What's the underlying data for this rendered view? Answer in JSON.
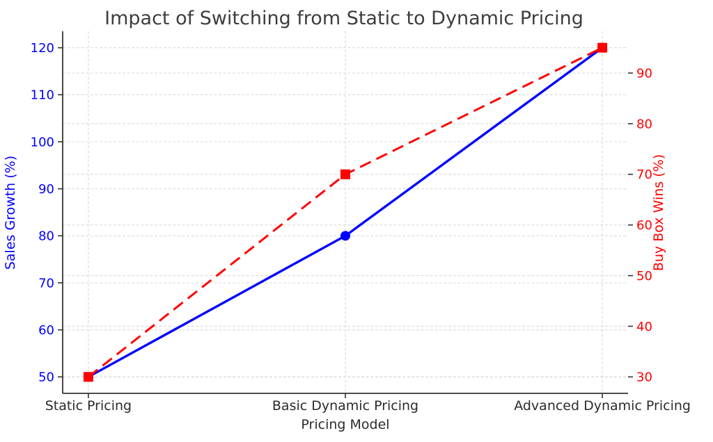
{
  "chart_data": {
    "type": "line",
    "title": "Impact of Switching from Static to Dynamic Pricing",
    "xlabel": "Pricing Model",
    "categories": [
      "Static Pricing",
      "Basic Dynamic Pricing",
      "Advanced Dynamic Pricing"
    ],
    "axes": {
      "left": {
        "label": "Sales Growth (%)",
        "color": "#0000ff",
        "ticks": [
          50,
          60,
          70,
          80,
          90,
          100,
          110,
          120
        ],
        "lim": [
          46.5,
          123.5
        ]
      },
      "right": {
        "label": "Buy Box Wins (%)",
        "color": "#ff0000",
        "ticks": [
          30,
          40,
          50,
          60,
          70,
          80,
          90
        ],
        "lim": [
          26.75,
          98.25
        ]
      }
    },
    "series": [
      {
        "name": "Sales Growth (%)",
        "axis": "left",
        "color": "#0000ff",
        "line_style": "solid",
        "marker": "circle",
        "values": [
          50,
          80,
          120
        ]
      },
      {
        "name": "Buy Box Wins (%)",
        "axis": "right",
        "color": "#ff0000",
        "line_style": "dashed",
        "marker": "square",
        "values": [
          30,
          70,
          95
        ]
      }
    ],
    "grid": {
      "on": true,
      "color": "#d9d9d9",
      "style": "dashed"
    },
    "legend": {
      "visible": false
    },
    "spine_color": "#333333",
    "x_tick_color": "#2b2b2b",
    "title_color": "#3d3d3d"
  }
}
